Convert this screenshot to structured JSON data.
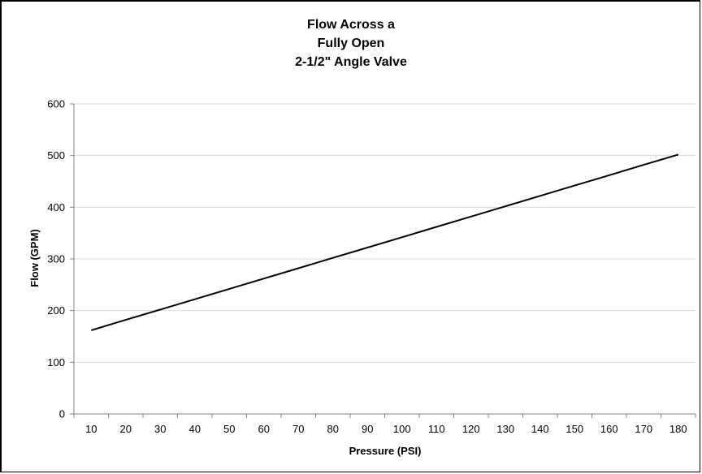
{
  "chart_data": {
    "type": "line",
    "title_lines": [
      "Flow Across a",
      "Fully Open",
      "2-1/2\" Angle Valve"
    ],
    "xlabel": "Pressure (PSI)",
    "ylabel": "Flow (GPM)",
    "categories": [
      "10",
      "20",
      "30",
      "40",
      "50",
      "60",
      "70",
      "80",
      "90",
      "100",
      "110",
      "120",
      "130",
      "140",
      "150",
      "160",
      "170",
      "180"
    ],
    "ylim": [
      0,
      600
    ],
    "yticks": [
      0,
      100,
      200,
      300,
      400,
      500,
      600
    ],
    "grid": true,
    "legend": "none",
    "series": [
      {
        "color": "#000000",
        "values": [
          162,
          182,
          202,
          222,
          242,
          262,
          282,
          302,
          322,
          342,
          362,
          382,
          402,
          422,
          442,
          462,
          482,
          502
        ]
      }
    ]
  }
}
